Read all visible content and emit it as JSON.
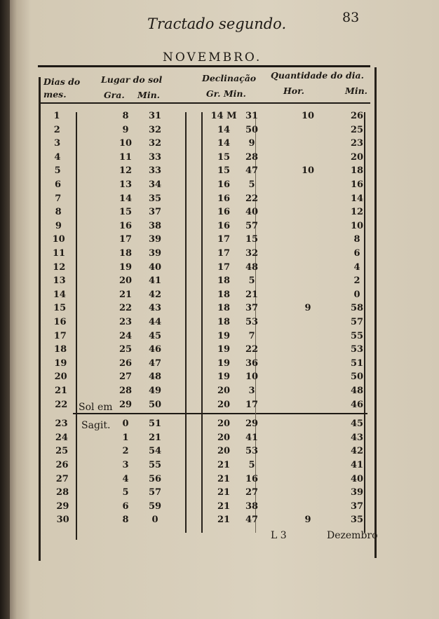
{
  "running_head": "Tractado segundo.",
  "folio": "83",
  "month_title": "NOVEMBRO.",
  "headers": {
    "dias": "Dias do mes.",
    "lugar": "Lugar do sol",
    "lugar_gra": "Gra.",
    "lugar_min": "Min.",
    "declinacao": "Declinação",
    "decl_gr_min": "Gr. Min.",
    "quantidade": "Quantidade do dia.",
    "hor": "Hor.",
    "min": "Min."
  },
  "rows": [
    {
      "dia": "1",
      "sg": "8",
      "sm": "31",
      "dg": "14 M",
      "dm": "31",
      "h": "10",
      "m": "26"
    },
    {
      "dia": "2",
      "sg": "9",
      "sm": "32",
      "dg": "14",
      "dm": "50",
      "h": "",
      "m": "25"
    },
    {
      "dia": "3",
      "sg": "10",
      "sm": "32",
      "dg": "14",
      "dm": "9",
      "h": "",
      "m": "23"
    },
    {
      "dia": "4",
      "sg": "11",
      "sm": "33",
      "dg": "15",
      "dm": "28",
      "h": "",
      "m": "20"
    },
    {
      "dia": "5",
      "sg": "12",
      "sm": "33",
      "dg": "15",
      "dm": "47",
      "h": "10",
      "m": "18"
    },
    {
      "dia": "6",
      "sg": "13",
      "sm": "34",
      "dg": "16",
      "dm": "5",
      "h": "",
      "m": "16"
    },
    {
      "dia": "7",
      "sg": "14",
      "sm": "35",
      "dg": "16",
      "dm": "22",
      "h": "",
      "m": "14"
    },
    {
      "dia": "8",
      "sg": "15",
      "sm": "37",
      "dg": "16",
      "dm": "40",
      "h": "",
      "m": "12"
    },
    {
      "dia": "9",
      "sg": "16",
      "sm": "38",
      "dg": "16",
      "dm": "57",
      "h": "",
      "m": "10"
    },
    {
      "dia": "10",
      "sg": "17",
      "sm": "39",
      "dg": "17",
      "dm": "15",
      "h": "",
      "m": "8"
    },
    {
      "dia": "11",
      "sg": "18",
      "sm": "39",
      "dg": "17",
      "dm": "32",
      "h": "",
      "m": "6"
    },
    {
      "dia": "12",
      "sg": "19",
      "sm": "40",
      "dg": "17",
      "dm": "48",
      "h": "",
      "m": "4"
    },
    {
      "dia": "13",
      "sg": "20",
      "sm": "41",
      "dg": "18",
      "dm": "5",
      "h": "",
      "m": "2"
    },
    {
      "dia": "14",
      "sg": "21",
      "sm": "42",
      "dg": "18",
      "dm": "21",
      "h": "",
      "m": "0"
    },
    {
      "dia": "15",
      "sg": "22",
      "sm": "43",
      "dg": "18",
      "dm": "37",
      "h": "9",
      "m": "58"
    },
    {
      "dia": "16",
      "sg": "23",
      "sm": "44",
      "dg": "18",
      "dm": "53",
      "h": "",
      "m": "57"
    },
    {
      "dia": "17",
      "sg": "24",
      "sm": "45",
      "dg": "19",
      "dm": "7",
      "h": "",
      "m": "55"
    },
    {
      "dia": "18",
      "sg": "25",
      "sm": "46",
      "dg": "19",
      "dm": "22",
      "h": "",
      "m": "53"
    },
    {
      "dia": "19",
      "sg": "26",
      "sm": "47",
      "dg": "19",
      "dm": "36",
      "h": "",
      "m": "51"
    },
    {
      "dia": "20",
      "sg": "27",
      "sm": "48",
      "dg": "19",
      "dm": "10",
      "h": "",
      "m": "50"
    },
    {
      "dia": "21",
      "sg": "28",
      "sm": "49",
      "dg": "20",
      "dm": "3",
      "h": "",
      "m": "48"
    },
    {
      "dia": "22",
      "sg": "29",
      "sm": "50",
      "dg": "20",
      "dm": "17",
      "h": "",
      "m": "46"
    },
    {
      "dia": "23",
      "sg": "0",
      "sm": "51",
      "dg": "20",
      "dm": "29",
      "h": "",
      "m": "45"
    },
    {
      "dia": "24",
      "sg": "1",
      "sm": "21",
      "dg": "20",
      "dm": "41",
      "h": "",
      "m": "43"
    },
    {
      "dia": "25",
      "sg": "2",
      "sm": "54",
      "dg": "20",
      "dm": "53",
      "h": "",
      "m": "42"
    },
    {
      "dia": "26",
      "sg": "3",
      "sm": "55",
      "dg": "21",
      "dm": "5",
      "h": "",
      "m": "41"
    },
    {
      "dia": "27",
      "sg": "4",
      "sm": "56",
      "dg": "21",
      "dm": "16",
      "h": "",
      "m": "40"
    },
    {
      "dia": "28",
      "sg": "5",
      "sm": "57",
      "dg": "21",
      "dm": "27",
      "h": "",
      "m": "39"
    },
    {
      "dia": "29",
      "sg": "6",
      "sm": "59",
      "dg": "21",
      "dm": "38",
      "h": "",
      "m": "37"
    },
    {
      "dia": "30",
      "sg": "8",
      "sm": "0",
      "dg": "21",
      "dm": "47",
      "h": "9",
      "m": "35"
    }
  ],
  "notes": {
    "sol_em": "Sol em",
    "sagit": "Sagit."
  },
  "footer": {
    "signature": "L 3",
    "catchword": "Dezembro"
  }
}
